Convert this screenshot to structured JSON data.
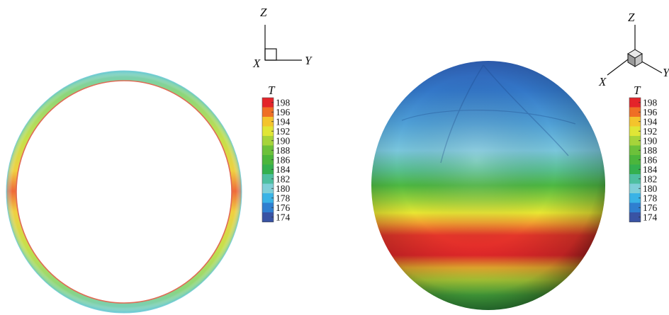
{
  "figure": {
    "left": {
      "axes": {
        "z": "Z",
        "x": "X",
        "y": "Y"
      },
      "colorbar": {
        "title": "T",
        "ticks": [
          "198",
          "196",
          "194",
          "192",
          "190",
          "188",
          "186",
          "184",
          "182",
          "180",
          "178",
          "176",
          "174"
        ]
      }
    },
    "right": {
      "axes": {
        "z": "Z",
        "x": "X",
        "y": "Y"
      },
      "colorbar": {
        "title": "T",
        "ticks": [
          "198",
          "196",
          "194",
          "192",
          "190",
          "188",
          "186",
          "184",
          "182",
          "180",
          "178",
          "176",
          "174"
        ]
      }
    },
    "colormap": [
      {
        "value": 174,
        "color": "#3953a4"
      },
      {
        "value": 176,
        "color": "#2f7fd0"
      },
      {
        "value": 178,
        "color": "#3ab3e6"
      },
      {
        "value": 180,
        "color": "#7fcfd8"
      },
      {
        "value": 182,
        "color": "#4ebfa0"
      },
      {
        "value": 184,
        "color": "#34b04f"
      },
      {
        "value": 186,
        "color": "#4bb63c"
      },
      {
        "value": 188,
        "color": "#6cc13a"
      },
      {
        "value": 190,
        "color": "#a6d43a"
      },
      {
        "value": 192,
        "color": "#e0e636"
      },
      {
        "value": 194,
        "color": "#f4c42c"
      },
      {
        "value": 196,
        "color": "#ef6f25"
      },
      {
        "value": 198,
        "color": "#e4242a"
      }
    ]
  }
}
